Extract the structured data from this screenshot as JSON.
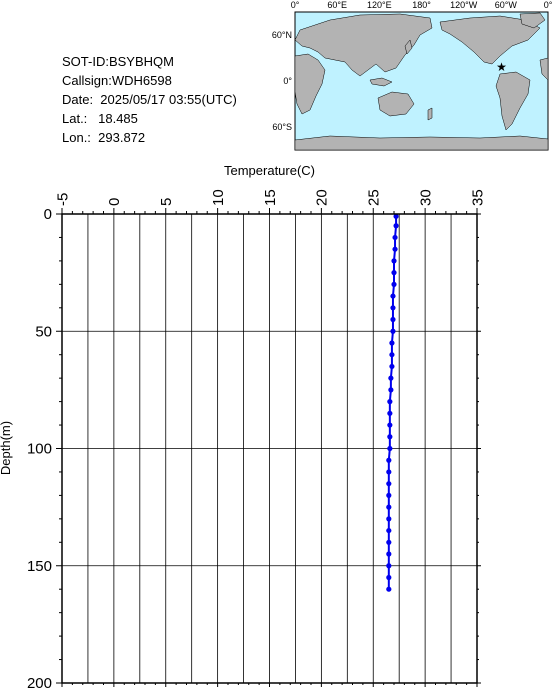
{
  "info": {
    "sot_id": "SOT-ID:BSYBHQM",
    "callsign": "Callsign:WDH6598",
    "date": "Date:  2025/05/17 03:55(UTC)",
    "lat": "Lat.:   18.485",
    "lon": "Lon.:  293.872"
  },
  "map": {
    "top_labels": [
      "0°",
      "60°E",
      "120°E",
      "180°",
      "120°W",
      "60°W",
      "0°"
    ],
    "lat_labels": [
      "60°N",
      "0°",
      "60°S"
    ],
    "ocean_color": "#bff2ff",
    "land_color": "#b3b3b3",
    "marker": {
      "lat": 18.485,
      "lon": 293.872,
      "color": "#ff0000",
      "icon": "star-icon"
    }
  },
  "chart_data": {
    "type": "line",
    "title": "",
    "xlabel": "Temperature(C)",
    "ylabel": "Depth(m)",
    "xlim": [
      -5,
      35
    ],
    "ylim": [
      0,
      200
    ],
    "y_inverted": true,
    "x_axis_position": "top",
    "xticks": [
      "-5",
      "0",
      "5",
      "10",
      "15",
      "20",
      "25",
      "30",
      "35"
    ],
    "yticks": [
      "0",
      "50",
      "100",
      "150",
      "200"
    ],
    "grid": true,
    "series": [
      {
        "name": "",
        "color": "#0000ee",
        "depth": [
          1,
          5,
          10,
          15,
          20,
          25,
          30,
          35,
          40,
          45,
          50,
          55,
          60,
          65,
          70,
          75,
          80,
          85,
          90,
          95,
          100,
          105,
          110,
          115,
          120,
          125,
          130,
          135,
          140,
          145,
          150,
          155,
          160
        ],
        "temperature": [
          27.2,
          27.2,
          27.1,
          27.1,
          27.0,
          27.0,
          27.0,
          26.9,
          26.9,
          26.9,
          26.9,
          26.8,
          26.8,
          26.8,
          26.7,
          26.7,
          26.6,
          26.6,
          26.6,
          26.6,
          26.6,
          26.5,
          26.5,
          26.5,
          26.5,
          26.5,
          26.5,
          26.5,
          26.5,
          26.5,
          26.5,
          26.5,
          26.5
        ]
      }
    ]
  }
}
